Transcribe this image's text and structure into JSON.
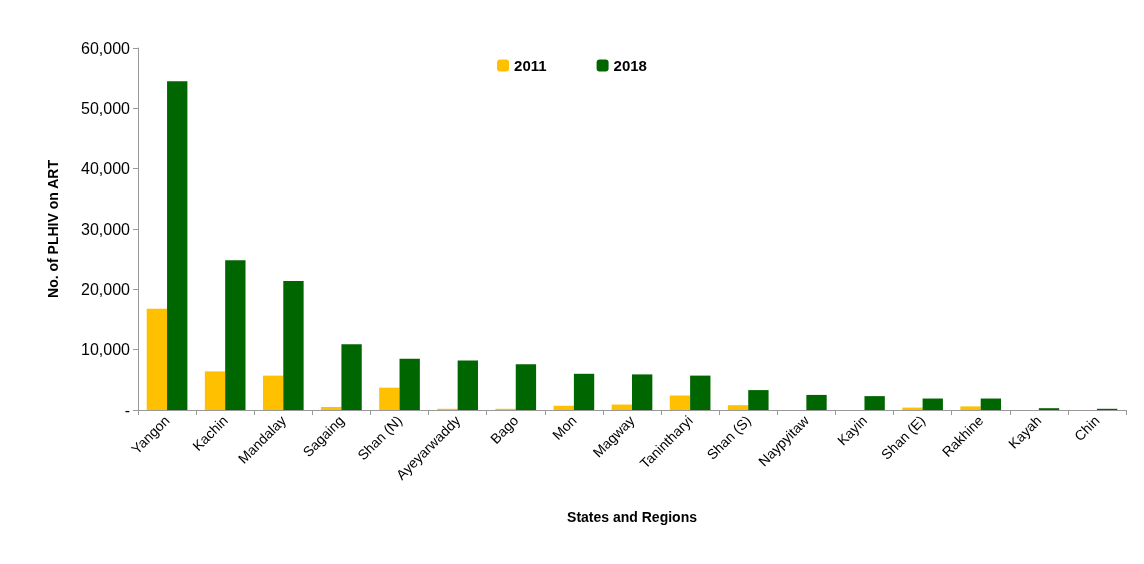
{
  "chart_data": {
    "type": "bar",
    "xlabel": "States and Regions",
    "ylabel": "No. of PLHIV on ART",
    "categories": [
      "Yangon",
      "Kachin",
      "Mandalay",
      "Sagaing",
      "Shan (N)",
      "Ayeyarwaddy",
      "Bago",
      "Mon",
      "Magway",
      "Tanintharyi",
      "Shan (S)",
      "Naypyitaw",
      "Kayin",
      "Shan (E)",
      "Rakhine",
      "Kayah",
      "Chin"
    ],
    "series": [
      {
        "name": "2011",
        "color": "#ffc000",
        "values": [
          16800,
          6400,
          5700,
          500,
          3700,
          200,
          200,
          700,
          900,
          2400,
          800,
          0,
          0,
          400,
          600,
          0,
          0
        ]
      },
      {
        "name": "2018",
        "color": "#006600",
        "values": [
          54500,
          24800,
          21400,
          10900,
          8500,
          8200,
          7600,
          6000,
          5900,
          5700,
          3300,
          2500,
          2300,
          1900,
          1900,
          300,
          200
        ]
      }
    ],
    "ylim": [
      0,
      60000
    ],
    "yticks": [
      {
        "value": 0,
        "label": "-"
      },
      {
        "value": 10000,
        "label": "10,000"
      },
      {
        "value": 20000,
        "label": "20,000"
      },
      {
        "value": 30000,
        "label": "30,000"
      },
      {
        "value": 40000,
        "label": "40,000"
      },
      {
        "value": 50000,
        "label": "50,000"
      },
      {
        "value": 60000,
        "label": "60,000"
      }
    ],
    "grid": false,
    "legend": "top"
  }
}
